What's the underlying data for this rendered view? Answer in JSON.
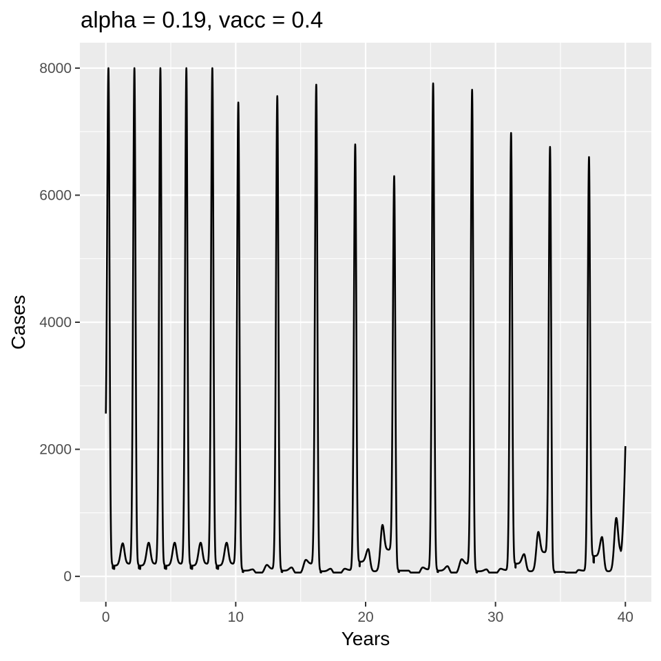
{
  "chart_data": {
    "type": "line",
    "title": "alpha = 0.19, vacc = 0.4",
    "xlabel": "Years",
    "ylabel": "Cases",
    "xlim": [
      -2,
      42
    ],
    "ylim": [
      -400,
      8400
    ],
    "x_ticks": [
      0,
      10,
      20,
      30,
      40
    ],
    "x_tick_labels": [
      "0",
      "10",
      "20",
      "30",
      "40"
    ],
    "y_ticks": [
      0,
      2000,
      4000,
      6000,
      8000
    ],
    "y_tick_labels": [
      "0",
      "2000",
      "4000",
      "6000",
      "8000"
    ],
    "grid": true,
    "legend": "none",
    "colors": {
      "panel": "#ebebeb",
      "grid": "#ffffff",
      "line": "#000000",
      "tick_text": "#4d4d4d",
      "tick_mark": "#333333"
    },
    "series": [
      {
        "start": [
          0.0,
          1750
        ],
        "end": [
          40.0,
          2050
        ],
        "baseline": 60,
        "peaks": [
          {
            "x": 0.2,
            "y": 8000,
            "w": 0.11,
            "left_base": 1750,
            "right_base": 180
          },
          {
            "x": 1.3,
            "y": 520,
            "w": 0.18,
            "left_base": 170,
            "right_base": 200
          },
          {
            "x": 2.2,
            "y": 8000,
            "w": 0.11,
            "left_base": 200,
            "right_base": 180
          },
          {
            "x": 3.3,
            "y": 530,
            "w": 0.18,
            "left_base": 170,
            "right_base": 200
          },
          {
            "x": 4.2,
            "y": 8000,
            "w": 0.11,
            "left_base": 200,
            "right_base": 180
          },
          {
            "x": 5.3,
            "y": 530,
            "w": 0.18,
            "left_base": 170,
            "right_base": 200
          },
          {
            "x": 6.2,
            "y": 8000,
            "w": 0.11,
            "left_base": 200,
            "right_base": 180
          },
          {
            "x": 7.3,
            "y": 530,
            "w": 0.18,
            "left_base": 170,
            "right_base": 200
          },
          {
            "x": 8.2,
            "y": 8000,
            "w": 0.11,
            "left_base": 200,
            "right_base": 180
          },
          {
            "x": 9.3,
            "y": 530,
            "w": 0.18,
            "left_base": 170,
            "right_base": 200
          },
          {
            "x": 10.2,
            "y": 7460,
            "w": 0.11,
            "left_base": 200,
            "right_base": 100
          },
          {
            "x": 11.3,
            "y": 110,
            "w": 0.2,
            "left_base": 90,
            "right_base": 40
          },
          {
            "x": 12.4,
            "y": 180,
            "w": 0.2,
            "left_base": 40,
            "right_base": 120
          },
          {
            "x": 13.2,
            "y": 7560,
            "w": 0.11,
            "left_base": 120,
            "right_base": 100
          },
          {
            "x": 14.3,
            "y": 140,
            "w": 0.2,
            "left_base": 90,
            "right_base": 40
          },
          {
            "x": 15.4,
            "y": 260,
            "w": 0.2,
            "left_base": 40,
            "right_base": 200
          },
          {
            "x": 16.2,
            "y": 7740,
            "w": 0.11,
            "left_base": 200,
            "right_base": 90
          },
          {
            "x": 17.3,
            "y": 120,
            "w": 0.2,
            "left_base": 80,
            "right_base": 30
          },
          {
            "x": 18.4,
            "y": 120,
            "w": 0.2,
            "left_base": 30,
            "right_base": 100
          },
          {
            "x": 19.2,
            "y": 6800,
            "w": 0.11,
            "left_base": 100,
            "right_base": 230
          },
          {
            "x": 20.2,
            "y": 430,
            "w": 0.18,
            "left_base": 230,
            "right_base": 80
          },
          {
            "x": 21.3,
            "y": 810,
            "w": 0.17,
            "left_base": 80,
            "right_base": 420
          },
          {
            "x": 22.2,
            "y": 6300,
            "w": 0.11,
            "left_base": 420,
            "right_base": 100
          },
          {
            "x": 23.3,
            "y": 90,
            "w": 0.2,
            "left_base": 90,
            "right_base": 20
          },
          {
            "x": 24.4,
            "y": 140,
            "w": 0.2,
            "left_base": 20,
            "right_base": 110
          },
          {
            "x": 25.2,
            "y": 7760,
            "w": 0.11,
            "left_base": 110,
            "right_base": 100
          },
          {
            "x": 26.3,
            "y": 160,
            "w": 0.2,
            "left_base": 90,
            "right_base": 40
          },
          {
            "x": 27.4,
            "y": 270,
            "w": 0.2,
            "left_base": 40,
            "right_base": 200
          },
          {
            "x": 28.2,
            "y": 7660,
            "w": 0.11,
            "left_base": 200,
            "right_base": 90
          },
          {
            "x": 29.3,
            "y": 110,
            "w": 0.2,
            "left_base": 80,
            "right_base": 30
          },
          {
            "x": 30.4,
            "y": 120,
            "w": 0.2,
            "left_base": 30,
            "right_base": 100
          },
          {
            "x": 31.2,
            "y": 6980,
            "w": 0.11,
            "left_base": 100,
            "right_base": 200
          },
          {
            "x": 32.2,
            "y": 350,
            "w": 0.18,
            "left_base": 200,
            "right_base": 80
          },
          {
            "x": 33.3,
            "y": 700,
            "w": 0.17,
            "left_base": 80,
            "right_base": 380
          },
          {
            "x": 34.2,
            "y": 6760,
            "w": 0.11,
            "left_base": 380,
            "right_base": 80
          },
          {
            "x": 35.3,
            "y": 70,
            "w": 0.2,
            "left_base": 70,
            "right_base": 10
          },
          {
            "x": 36.4,
            "y": 100,
            "w": 0.2,
            "left_base": 10,
            "right_base": 90
          },
          {
            "x": 37.2,
            "y": 6600,
            "w": 0.11,
            "left_base": 90,
            "right_base": 320
          },
          {
            "x": 38.2,
            "y": 620,
            "w": 0.17,
            "left_base": 320,
            "right_base": 80
          },
          {
            "x": 39.3,
            "y": 920,
            "w": 0.17,
            "left_base": 80,
            "right_base": 400
          }
        ]
      }
    ]
  }
}
